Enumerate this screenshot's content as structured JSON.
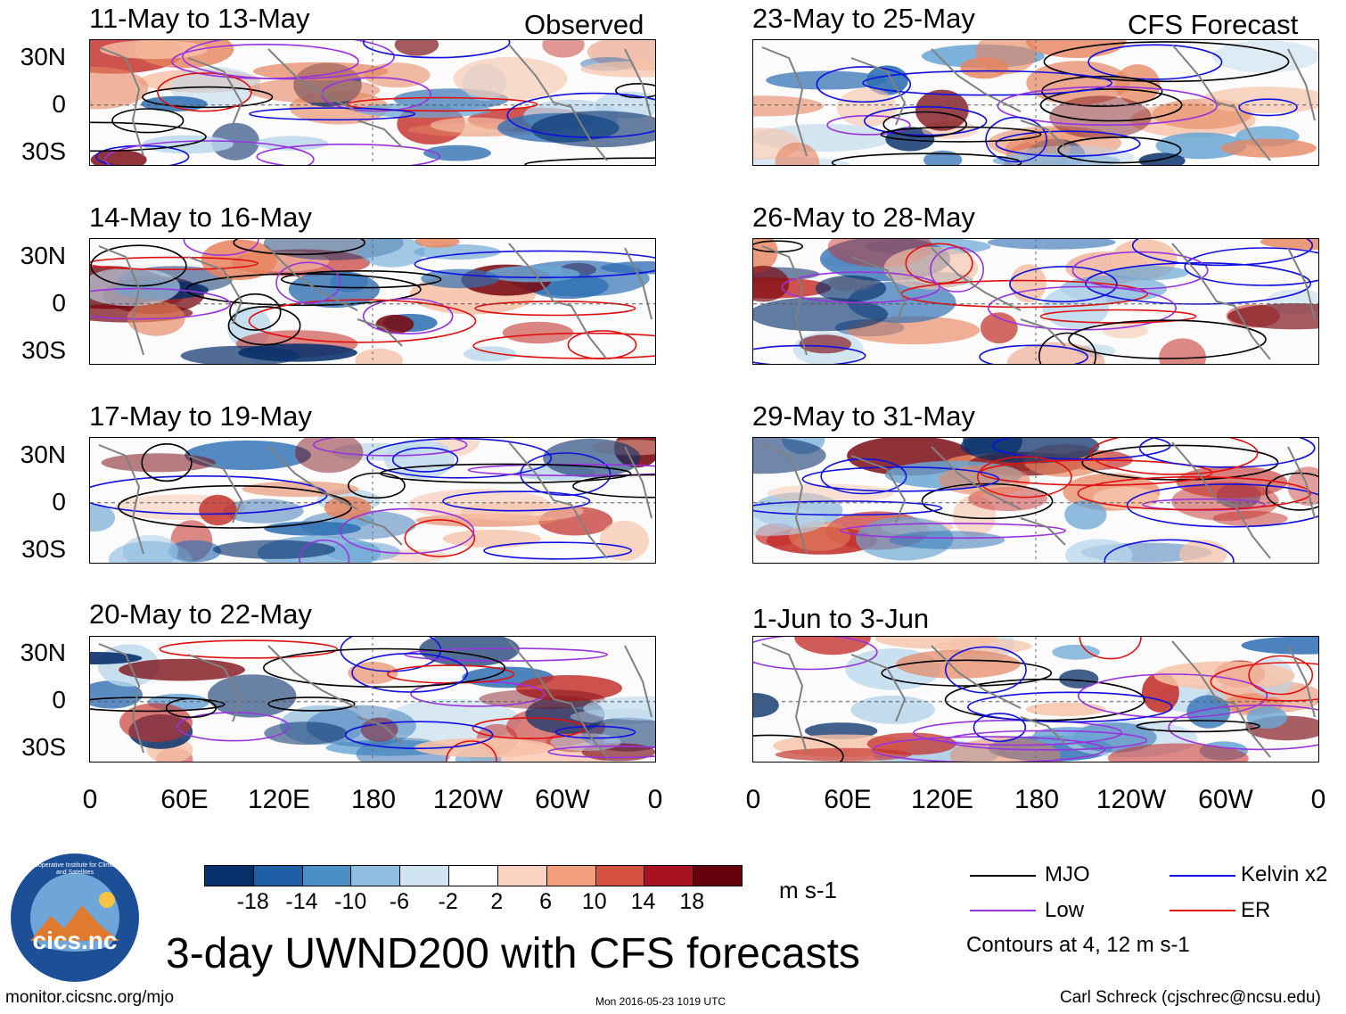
{
  "figure_title": "3-day UWND200 with CFS forecasts",
  "column_headers": {
    "observed": "Observed",
    "forecast": "CFS Forecast"
  },
  "observed_panels": [
    {
      "period": "11-May to 13-May"
    },
    {
      "period": "14-May to 16-May"
    },
    {
      "period": "17-May to 19-May"
    },
    {
      "period": "20-May to 22-May"
    }
  ],
  "forecast_panels": [
    {
      "period": "23-May to 25-May"
    },
    {
      "period": "26-May to 28-May"
    },
    {
      "period": "29-May to 31-May"
    },
    {
      "period": "1-Jun to 3-Jun"
    }
  ],
  "lat_ticks": [
    "30N",
    "0",
    "30S"
  ],
  "lon_ticks": [
    "0",
    "60E",
    "120E",
    "180",
    "120W",
    "60W",
    "0"
  ],
  "colorbar": {
    "unit": "m s-1",
    "labels": [
      "-18",
      "-14",
      "-10",
      "-6",
      "-2",
      "2",
      "6",
      "10",
      "14",
      "18"
    ],
    "colors": [
      "#08306b",
      "#1f5fa8",
      "#4a8fc6",
      "#8fbfe0",
      "#cfe3f1",
      "#ffffff",
      "#fbd2bf",
      "#f2a07c",
      "#d6513f",
      "#a8131f",
      "#67000d"
    ]
  },
  "legend": {
    "items": [
      {
        "name": "MJO",
        "color": "#000000"
      },
      {
        "name": "Kelvin x2",
        "color": "#1010e0"
      },
      {
        "name": "Low",
        "color": "#9933dd"
      },
      {
        "name": "ER",
        "color": "#e01010"
      }
    ],
    "note": "Contours at 4, 12 m s-1"
  },
  "logo_text": "cics.nc",
  "logo_ring_text": "Cooperative Institute for Climate and Satellites",
  "footer": {
    "url": "monitor.cicsnc.org/mjo",
    "timestamp": "Mon 2016-05-23 1019 UTC",
    "author": "Carl Schreck (cjschrec@ncsu.edu)"
  }
}
